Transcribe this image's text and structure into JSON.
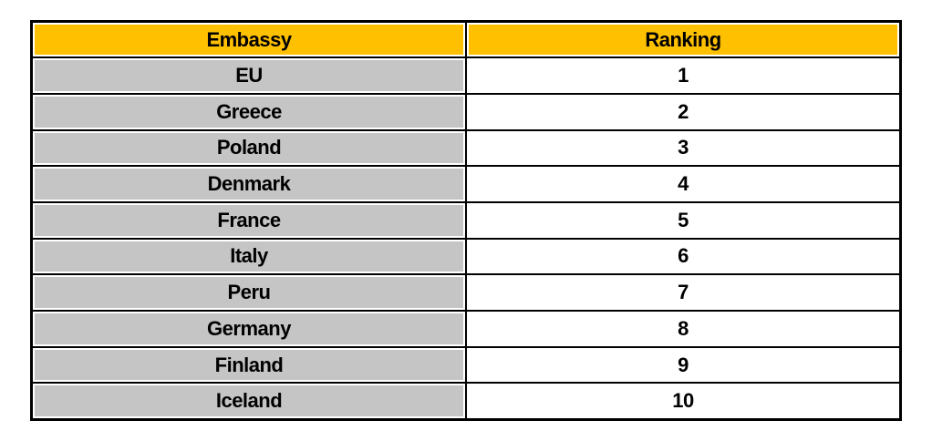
{
  "page": {
    "background": "#FFFFFF"
  },
  "table": {
    "columns": [
      {
        "label": "Embassy"
      },
      {
        "label": "Ranking"
      }
    ],
    "rows": [
      {
        "embassy": "EU",
        "ranking": "1"
      },
      {
        "embassy": "Greece",
        "ranking": "2"
      },
      {
        "embassy": "Poland",
        "ranking": "3"
      },
      {
        "embassy": "Denmark",
        "ranking": "4"
      },
      {
        "embassy": "France",
        "ranking": "5"
      },
      {
        "embassy": "Italy",
        "ranking": "6"
      },
      {
        "embassy": "Peru",
        "ranking": "7"
      },
      {
        "embassy": "Germany",
        "ranking": "8"
      },
      {
        "embassy": "Finland",
        "ranking": "9"
      },
      {
        "embassy": "Iceland",
        "ranking": "10"
      }
    ],
    "colors": {
      "header_bg": "#FFC000",
      "embassy_cell_bg": "#C5C5C5",
      "ranking_cell_bg": "#FFFFFF",
      "border": "#000000",
      "text": "#000000"
    }
  },
  "chart_data": {
    "type": "table",
    "columns": [
      "Embassy",
      "Ranking"
    ],
    "rows": [
      [
        "EU",
        1
      ],
      [
        "Greece",
        2
      ],
      [
        "Poland",
        3
      ],
      [
        "Denmark",
        4
      ],
      [
        "France",
        5
      ],
      [
        "Italy",
        6
      ],
      [
        "Peru",
        7
      ],
      [
        "Germany",
        8
      ],
      [
        "Finland",
        9
      ],
      [
        "Iceland",
        10
      ]
    ]
  }
}
